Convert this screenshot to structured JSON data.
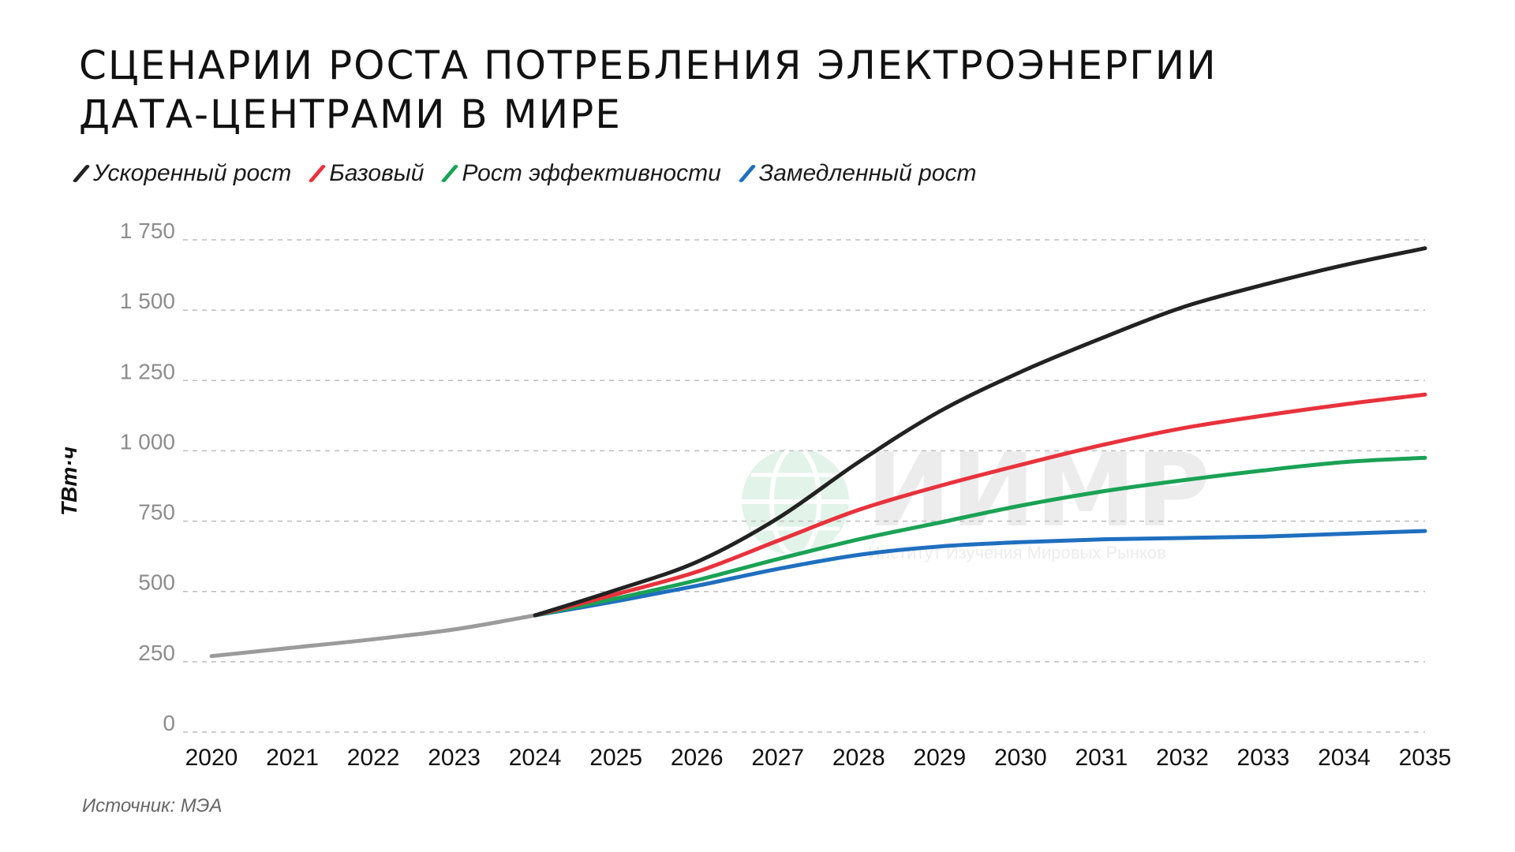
{
  "title_lines": [
    "Сценарии роста потребления электроэнергии",
    "дата-центрами в мире"
  ],
  "source": "Источник: МЭА",
  "watermark": {
    "name": "ИИМР",
    "subtitle": "Институт Изучения Мировых Рынков"
  },
  "chart_data": {
    "type": "line",
    "title": "Сценарии роста потребления электроэнергии дата-центрами в мире",
    "xlabel": "",
    "ylabel": "ТВт·ч",
    "x": [
      2020,
      2021,
      2022,
      2023,
      2024,
      2025,
      2026,
      2027,
      2028,
      2029,
      2030,
      2031,
      2032,
      2033,
      2034,
      2035
    ],
    "x_tick_labels": [
      "2020",
      "2021",
      "2022",
      "2023",
      "2024",
      "2025",
      "2026",
      "2027",
      "2028",
      "2029",
      "2030",
      "2031",
      "2032",
      "2033",
      "2034",
      "2035"
    ],
    "ylim": [
      0,
      1750
    ],
    "y_ticks": [
      0,
      250,
      500,
      750,
      1000,
      1250,
      1500,
      1750
    ],
    "y_tick_labels": [
      "0",
      "250",
      "500",
      "750",
      "1 000",
      "1 250",
      "1 500",
      "1 750"
    ],
    "grid": "horizontal-dashed",
    "legend_position": "top-left",
    "history": {
      "color": "#9b9b9b",
      "x": [
        2020,
        2021,
        2022,
        2023,
        2024
      ],
      "values": [
        270,
        300,
        330,
        365,
        415
      ]
    },
    "series": [
      {
        "name": "Ускоренный рост",
        "color": "#222222",
        "x": [
          2024,
          2025,
          2026,
          2027,
          2028,
          2029,
          2030,
          2031,
          2032,
          2033,
          2034,
          2035
        ],
        "values": [
          415,
          505,
          605,
          760,
          960,
          1140,
          1280,
          1400,
          1510,
          1590,
          1660,
          1720
        ]
      },
      {
        "name": "Базовый",
        "color": "#e8323c",
        "x": [
          2024,
          2025,
          2026,
          2027,
          2028,
          2029,
          2030,
          2031,
          2032,
          2033,
          2034,
          2035
        ],
        "values": [
          415,
          490,
          570,
          680,
          790,
          875,
          950,
          1020,
          1080,
          1125,
          1165,
          1200
        ]
      },
      {
        "name": "Рост эффективности",
        "color": "#1aa255",
        "x": [
          2024,
          2025,
          2026,
          2027,
          2028,
          2029,
          2030,
          2031,
          2032,
          2033,
          2034,
          2035
        ],
        "values": [
          415,
          475,
          540,
          615,
          685,
          745,
          805,
          855,
          895,
          930,
          960,
          975
        ]
      },
      {
        "name": "Замедленный рост",
        "color": "#1f6fbf",
        "x": [
          2024,
          2025,
          2026,
          2027,
          2028,
          2029,
          2030,
          2031,
          2032,
          2033,
          2034,
          2035
        ],
        "values": [
          415,
          465,
          520,
          580,
          630,
          660,
          675,
          685,
          690,
          695,
          705,
          715
        ]
      }
    ]
  }
}
